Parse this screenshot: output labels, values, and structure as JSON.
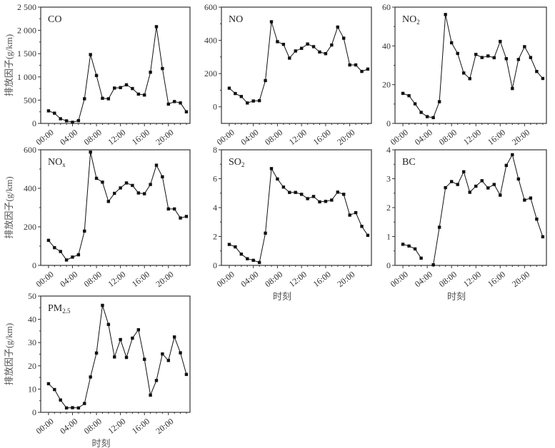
{
  "chart_data": [
    {
      "type": "line",
      "title": "CO",
      "title_sub": "",
      "ylabel": "排放因子(g/km)",
      "xlabel": "",
      "ylim": [
        0,
        2500
      ],
      "yticks": [
        0,
        500,
        1000,
        1500,
        2000,
        2500
      ],
      "ytick_labels": [
        "0",
        "500",
        "1 000",
        "1 500",
        "2 000",
        "2 500"
      ],
      "values": [
        270,
        220,
        100,
        55,
        25,
        60,
        530,
        1480,
        1030,
        540,
        530,
        760,
        770,
        830,
        750,
        630,
        610,
        1100,
        2080,
        1180,
        415,
        470,
        440,
        250
      ]
    },
    {
      "type": "line",
      "title": "NO",
      "title_sub": "",
      "ylabel": "",
      "xlabel": "",
      "ylim": [
        -100,
        600
      ],
      "yticks": [
        0,
        200,
        400,
        600
      ],
      "ytick_labels": [
        "0",
        "200",
        "400",
        "600"
      ],
      "values": [
        112,
        80,
        62,
        23,
        35,
        37,
        158,
        512,
        392,
        376,
        293,
        336,
        352,
        378,
        362,
        330,
        320,
        372,
        480,
        413,
        252,
        252,
        213,
        227
      ]
    },
    {
      "type": "line",
      "title": "NO",
      "title_sub": "2",
      "ylabel": "",
      "xlabel": "",
      "ylim": [
        0,
        60
      ],
      "yticks": [
        0,
        20,
        40,
        60
      ],
      "ytick_labels": [
        "0",
        "20",
        "40",
        "60"
      ],
      "values": [
        15.5,
        14.3,
        10.1,
        5.7,
        3.5,
        3.0,
        11.2,
        56.2,
        41.6,
        36.1,
        26.0,
        23.1,
        35.6,
        34.0,
        34.8,
        33.9,
        42.3,
        33.4,
        18.0,
        33.0,
        39.6,
        34.0,
        26.8,
        23.2
      ]
    },
    {
      "type": "line",
      "title": "NO",
      "title_sub": "x",
      "ylabel": "排放因子(g/km)",
      "xlabel": "",
      "ylim": [
        0,
        600
      ],
      "yticks": [
        0,
        200,
        400,
        600
      ],
      "ytick_labels": [
        "0",
        "200",
        "400",
        "600"
      ],
      "values": [
        130,
        92,
        72,
        28,
        43,
        55,
        178,
        588,
        452,
        432,
        332,
        374,
        402,
        428,
        415,
        376,
        372,
        420,
        520,
        460,
        293,
        293,
        246,
        254
      ]
    },
    {
      "type": "line",
      "title": "SO",
      "title_sub": "2",
      "ylabel": "",
      "xlabel": "时刻",
      "ylim": [
        0,
        8
      ],
      "yticks": [
        0,
        2,
        4,
        6,
        8
      ],
      "ytick_labels": [
        "0",
        "2",
        "4",
        "6",
        "8"
      ],
      "values": [
        1.45,
        1.28,
        0.78,
        0.46,
        0.35,
        0.2,
        2.23,
        6.7,
        5.98,
        5.42,
        5.05,
        5.05,
        4.92,
        4.62,
        4.77,
        4.4,
        4.43,
        4.52,
        5.07,
        4.92,
        3.48,
        3.65,
        2.7,
        2.08
      ]
    },
    {
      "type": "line",
      "title": "BC",
      "title_sub": "",
      "ylabel": "",
      "xlabel": "时刻",
      "ylim": [
        0,
        4
      ],
      "yticks": [
        0,
        1,
        2,
        3,
        4
      ],
      "ytick_labels": [
        "0",
        "1",
        "2",
        "3",
        "4"
      ],
      "values": [
        0.73,
        0.67,
        0.57,
        0.25,
        null,
        0.02,
        1.32,
        2.69,
        2.9,
        2.8,
        3.24,
        2.53,
        2.74,
        2.93,
        2.68,
        2.8,
        2.43,
        3.46,
        3.83,
        2.99,
        2.26,
        2.33,
        1.6,
        0.99
      ]
    },
    {
      "type": "line",
      "title": "PM",
      "title_sub": "2.5",
      "ylabel": "排放因子(g/km)",
      "xlabel": "时刻",
      "ylim": [
        0,
        50
      ],
      "yticks": [
        0,
        10,
        20,
        30,
        40,
        50
      ],
      "ytick_labels": [
        "0",
        "10",
        "20",
        "30",
        "40",
        "50"
      ],
      "values": [
        12.3,
        9.8,
        5.3,
        1.9,
        2.0,
        1.9,
        3.8,
        15.2,
        25.5,
        46,
        37.8,
        23.8,
        31.3,
        23.6,
        31.9,
        35.5,
        22.8,
        7.4,
        13.7,
        25.1,
        22.3,
        32.4,
        25.6,
        16.3
      ]
    }
  ],
  "x_hours": [
    0,
    1,
    2,
    3,
    4,
    5,
    6,
    7,
    8,
    9,
    10,
    11,
    12,
    13,
    14,
    15,
    16,
    17,
    18,
    19,
    20,
    21,
    22,
    23
  ],
  "xtick_positions": [
    0,
    4,
    8,
    12,
    16,
    20
  ],
  "xtick_labels": [
    "00:00",
    "04:00",
    "08:00",
    "12:00",
    "16:00",
    "20:00"
  ],
  "xlim": [
    -1.3,
    23.6
  ],
  "colors": {
    "line": "#111111",
    "axis": "#333333"
  }
}
